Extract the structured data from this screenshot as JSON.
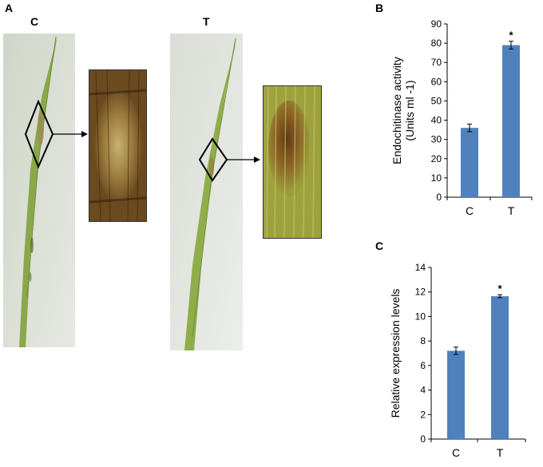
{
  "figure": {
    "panel_a": {
      "letter": "A",
      "left_label": "C",
      "right_label": "T"
    },
    "panel_b": {
      "letter": "B"
    },
    "panel_c": {
      "letter": "C"
    }
  },
  "colors": {
    "bar": "#4f81bd",
    "leaf": "#8aa84a",
    "lesion_c": "#6b4a1c",
    "lesion_t": "#7a4a1e"
  },
  "chart_data": [
    {
      "type": "bar",
      "panel": "B",
      "categories": [
        "C",
        "T"
      ],
      "values": [
        36,
        79
      ],
      "errors": [
        2,
        2
      ],
      "significance": [
        "",
        "*"
      ],
      "ylabel_lines": [
        "Endochitinase activity",
        "(Units ml -1)"
      ],
      "ylim": [
        0,
        90
      ],
      "yticks": [
        "0",
        "10",
        "20",
        "30",
        "40",
        "50",
        "60",
        "70",
        "80",
        "90"
      ]
    },
    {
      "type": "bar",
      "panel": "C",
      "categories": [
        "C",
        "T"
      ],
      "values": [
        7.2,
        11.65
      ],
      "errors": [
        0.3,
        0.12
      ],
      "significance": [
        "",
        "*"
      ],
      "ylabel_lines": [
        "Relative expression levels"
      ],
      "ylim": [
        0,
        14
      ],
      "yticks": [
        "0",
        "2",
        "4",
        "6",
        "8",
        "10",
        "12",
        "14"
      ]
    }
  ]
}
